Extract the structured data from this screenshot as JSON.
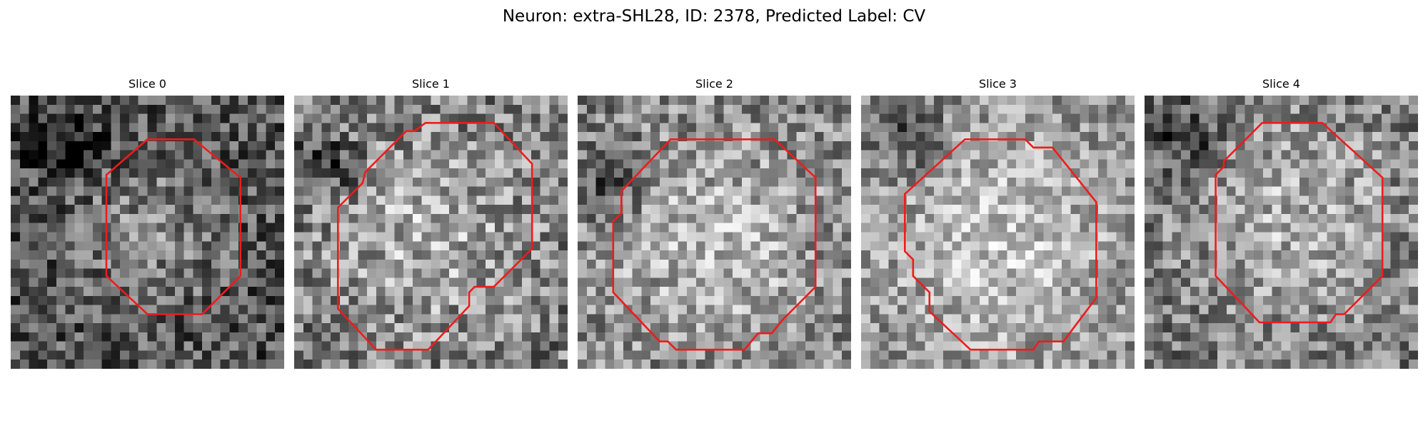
{
  "figure": {
    "title": "Neuron: extra-SHL28, ID: 2378, Predicted Label: CV"
  },
  "contour_color": "#ee1c1c",
  "panels": [
    {
      "title": "Slice 0",
      "brightness": 0.4,
      "contrast": 0.55,
      "blob": [
        0.52,
        0.5,
        0.2
      ],
      "dark": [
        0.2,
        0.18
      ],
      "contour": [
        [
          0.5,
          0.16
        ],
        [
          0.67,
          0.16
        ],
        [
          0.84,
          0.3
        ],
        [
          0.84,
          0.66
        ],
        [
          0.7,
          0.8
        ],
        [
          0.5,
          0.8
        ],
        [
          0.35,
          0.66
        ],
        [
          0.35,
          0.29
        ]
      ]
    },
    {
      "title": "Slice 1",
      "brightness": 0.55,
      "contrast": 0.6,
      "blob": [
        0.48,
        0.5,
        0.28
      ],
      "dark": [
        0.12,
        0.25
      ],
      "contour": [
        [
          0.48,
          0.1
        ],
        [
          0.73,
          0.1
        ],
        [
          0.87,
          0.25
        ],
        [
          0.87,
          0.56
        ],
        [
          0.73,
          0.7
        ],
        [
          0.66,
          0.7
        ],
        [
          0.64,
          0.72
        ],
        [
          0.64,
          0.77
        ],
        [
          0.49,
          0.93
        ],
        [
          0.3,
          0.93
        ],
        [
          0.16,
          0.78
        ],
        [
          0.16,
          0.41
        ],
        [
          0.25,
          0.32
        ],
        [
          0.26,
          0.28
        ],
        [
          0.41,
          0.13
        ],
        [
          0.44,
          0.13
        ]
      ]
    },
    {
      "title": "Slice 2",
      "brightness": 0.58,
      "contrast": 0.55,
      "blob": [
        0.5,
        0.55,
        0.3
      ],
      "dark": [
        0.12,
        0.3
      ],
      "contour": [
        [
          0.34,
          0.16
        ],
        [
          0.72,
          0.16
        ],
        [
          0.87,
          0.3
        ],
        [
          0.87,
          0.7
        ],
        [
          0.75,
          0.82
        ],
        [
          0.71,
          0.87
        ],
        [
          0.66,
          0.87
        ],
        [
          0.61,
          0.93
        ],
        [
          0.36,
          0.93
        ],
        [
          0.33,
          0.9
        ],
        [
          0.3,
          0.9
        ],
        [
          0.13,
          0.72
        ],
        [
          0.13,
          0.46
        ],
        [
          0.16,
          0.43
        ],
        [
          0.16,
          0.35
        ]
      ]
    },
    {
      "title": "Slice 3",
      "brightness": 0.62,
      "contrast": 0.5,
      "blob": [
        0.52,
        0.55,
        0.32
      ],
      "dark": [
        0.18,
        0.15
      ],
      "contour": [
        [
          0.38,
          0.16
        ],
        [
          0.6,
          0.16
        ],
        [
          0.63,
          0.19
        ],
        [
          0.7,
          0.19
        ],
        [
          0.86,
          0.39
        ],
        [
          0.86,
          0.74
        ],
        [
          0.74,
          0.9
        ],
        [
          0.65,
          0.9
        ],
        [
          0.63,
          0.93
        ],
        [
          0.4,
          0.93
        ],
        [
          0.25,
          0.79
        ],
        [
          0.25,
          0.72
        ],
        [
          0.19,
          0.66
        ],
        [
          0.19,
          0.6
        ],
        [
          0.16,
          0.57
        ],
        [
          0.16,
          0.36
        ]
      ]
    },
    {
      "title": "Slice 4",
      "brightness": 0.55,
      "contrast": 0.55,
      "blob": [
        0.55,
        0.45,
        0.28
      ],
      "dark": [
        0.15,
        0.15
      ],
      "contour": [
        [
          0.43,
          0.1
        ],
        [
          0.65,
          0.1
        ],
        [
          0.87,
          0.3
        ],
        [
          0.87,
          0.66
        ],
        [
          0.73,
          0.8
        ],
        [
          0.7,
          0.8
        ],
        [
          0.68,
          0.83
        ],
        [
          0.42,
          0.83
        ],
        [
          0.26,
          0.66
        ],
        [
          0.26,
          0.29
        ],
        [
          0.29,
          0.26
        ],
        [
          0.29,
          0.24
        ]
      ]
    }
  ]
}
